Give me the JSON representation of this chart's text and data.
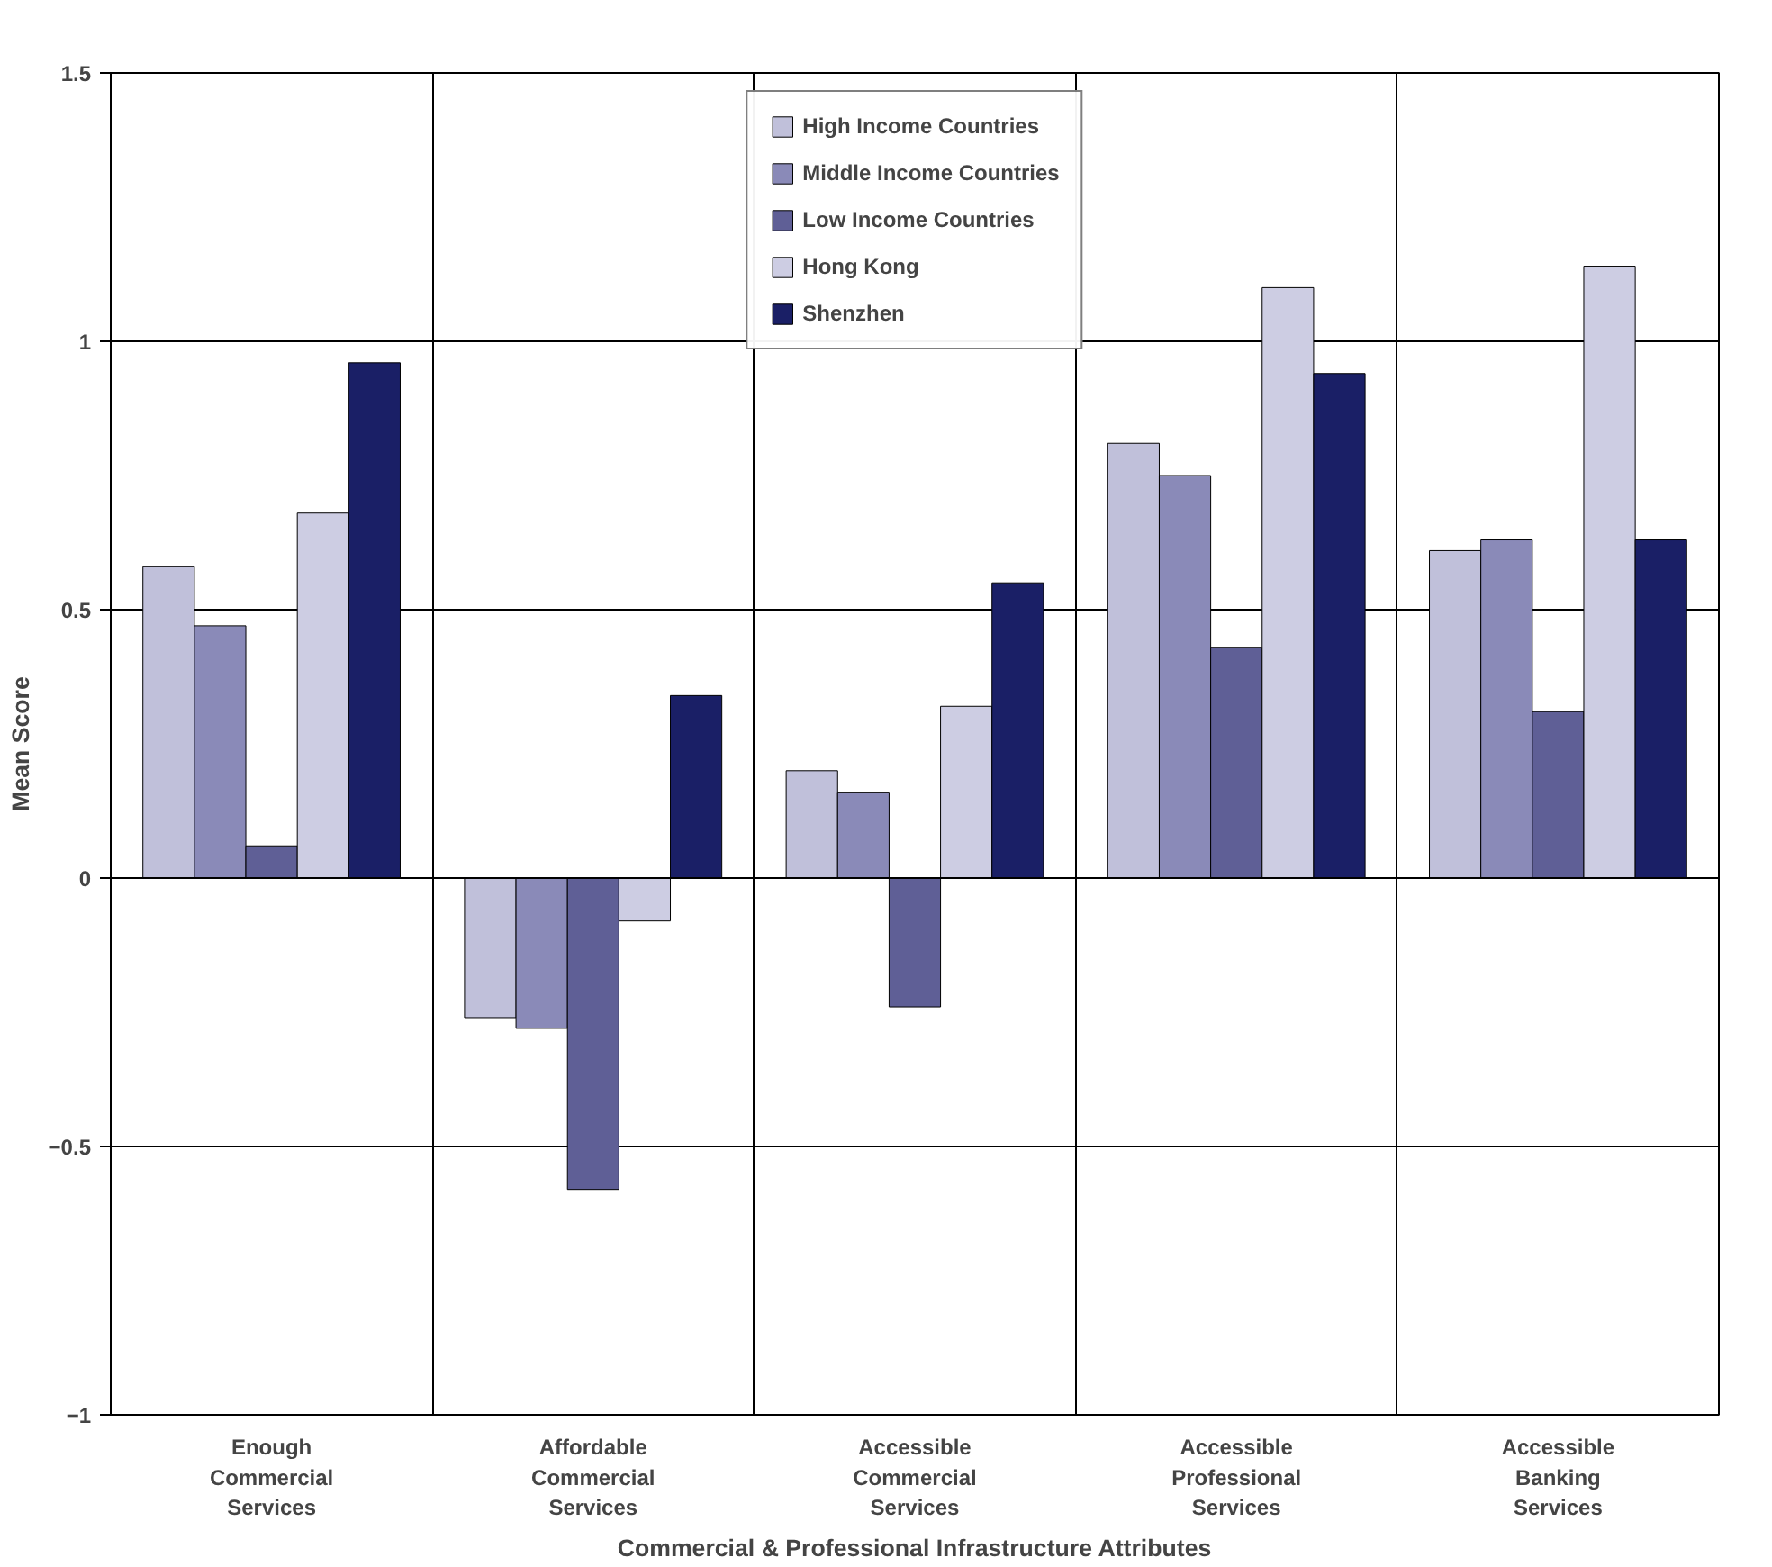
{
  "chart_data": {
    "type": "bar",
    "xlabel": "Commercial & Professional Infrastructure Attributes",
    "ylabel": "Mean Score",
    "categories": [
      "Enough Commercial Services",
      "Affordable Commercial Services",
      "Accessible Commercial Services",
      "Accessible Professional Services",
      "Accessible Banking Services"
    ],
    "series": [
      {
        "name": "High Income Countries",
        "color": "#c0c0da",
        "values": [
          0.58,
          -0.26,
          0.2,
          0.81,
          0.61
        ]
      },
      {
        "name": "Middle Income Countries",
        "color": "#8a8ab8",
        "values": [
          0.47,
          -0.28,
          0.16,
          0.75,
          0.63
        ]
      },
      {
        "name": "Low Income Countries",
        "color": "#5f5f96",
        "values": [
          0.06,
          -0.58,
          -0.24,
          0.43,
          0.31
        ]
      },
      {
        "name": "Hong Kong",
        "color": "#cdcde3",
        "values": [
          0.68,
          -0.08,
          0.32,
          1.1,
          1.14
        ]
      },
      {
        "name": "Shenzhen",
        "color": "#1a1f66",
        "values": [
          0.96,
          0.34,
          0.55,
          0.94,
          0.63
        ]
      }
    ],
    "ylim": [
      -1,
      1.5
    ],
    "yticks": [
      -1,
      -0.5,
      0,
      0.5,
      1,
      1.5
    ],
    "grid": true,
    "legend": "top"
  }
}
